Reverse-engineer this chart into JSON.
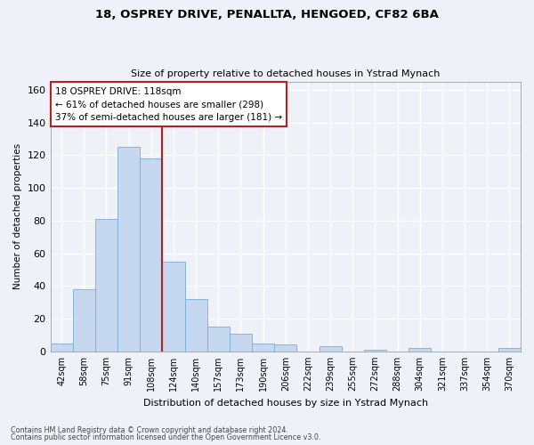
{
  "title1": "18, OSPREY DRIVE, PENALLTA, HENGOED, CF82 6BA",
  "title2": "Size of property relative to detached houses in Ystrad Mynach",
  "xlabel": "Distribution of detached houses by size in Ystrad Mynach",
  "ylabel": "Number of detached properties",
  "categories": [
    "42sqm",
    "58sqm",
    "75sqm",
    "91sqm",
    "108sqm",
    "124sqm",
    "140sqm",
    "157sqm",
    "173sqm",
    "190sqm",
    "206sqm",
    "222sqm",
    "239sqm",
    "255sqm",
    "272sqm",
    "288sqm",
    "304sqm",
    "321sqm",
    "337sqm",
    "354sqm",
    "370sqm"
  ],
  "values": [
    5,
    38,
    81,
    125,
    118,
    55,
    32,
    15,
    11,
    5,
    4,
    0,
    3,
    0,
    1,
    0,
    2,
    0,
    0,
    0,
    2
  ],
  "bar_color": "#c5d8ef",
  "bar_edge_color": "#7aadd4",
  "vline_x_idx": 4,
  "vline_color": "#b22222",
  "annotation_title": "18 OSPREY DRIVE: 118sqm",
  "annotation_line1": "← 61% of detached houses are smaller (298)",
  "annotation_line2": "37% of semi-detached houses are larger (181) →",
  "annotation_box_color": "#ffffff",
  "annotation_box_edge": "#b22222",
  "ylim": [
    0,
    165
  ],
  "yticks": [
    0,
    20,
    40,
    60,
    80,
    100,
    120,
    140,
    160
  ],
  "footnote1": "Contains HM Land Registry data © Crown copyright and database right 2024.",
  "footnote2": "Contains public sector information licensed under the Open Government Licence v3.0.",
  "bg_color": "#eef2f8",
  "grid_color": "#ffffff"
}
